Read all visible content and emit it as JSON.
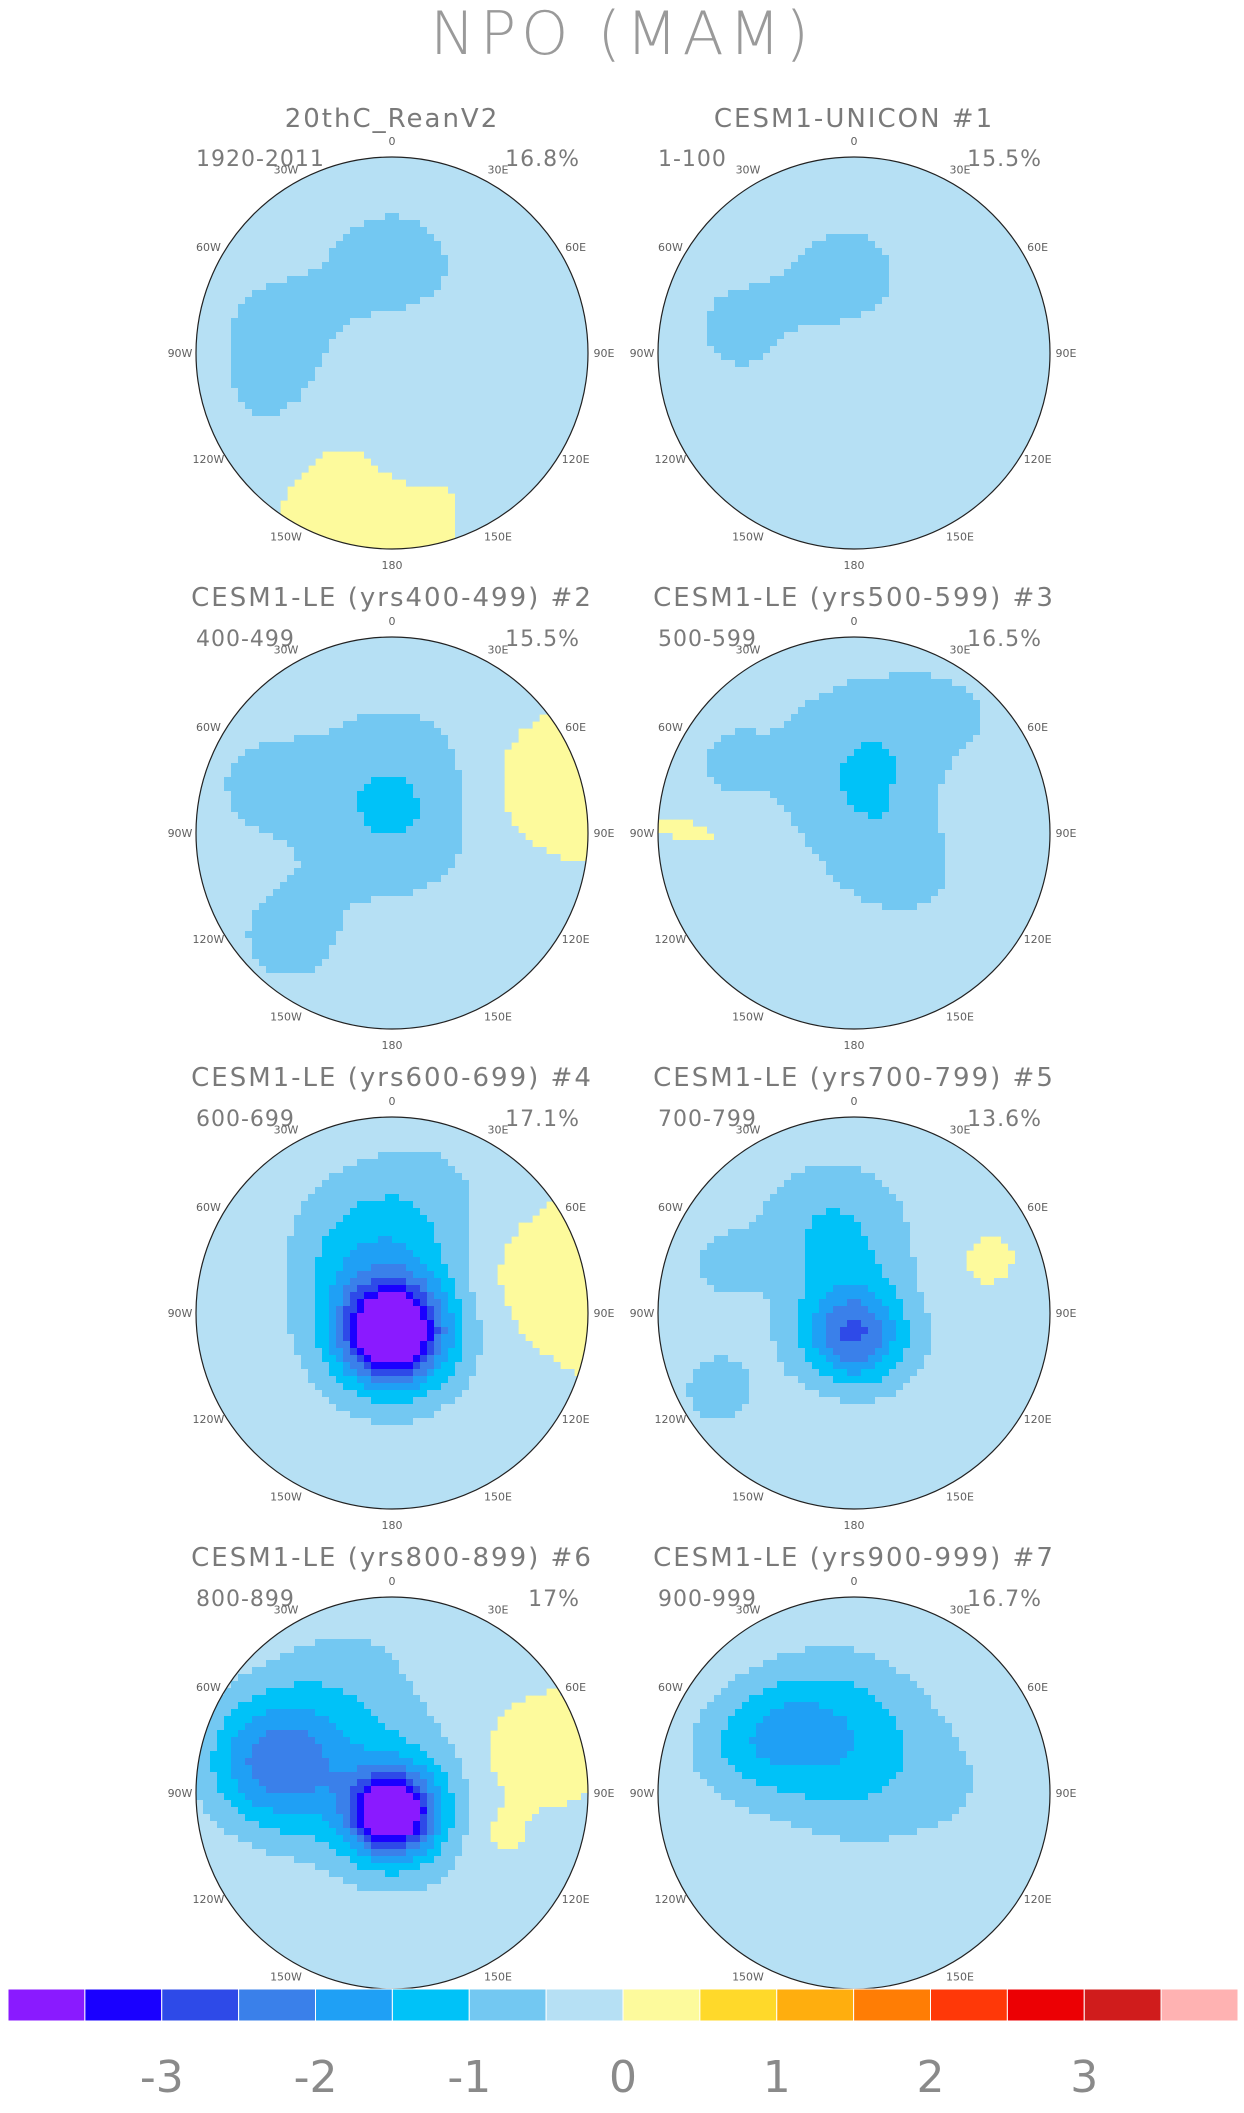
{
  "title": "NPO (MAM)",
  "colorbar": {
    "colors": [
      "#8a1aff",
      "#1a00ff",
      "#2e4ae8",
      "#3a80ea",
      "#1fa0f5",
      "#00c2f8",
      "#73c8f2",
      "#b6e0f4",
      "#fdfa9c",
      "#ffd92a",
      "#ffae0e",
      "#ff7d05",
      "#ff3808",
      "#ec0004",
      "#d01c1c",
      "#ffb2b2"
    ],
    "labels": [
      "-3",
      "-2",
      "-1",
      "0",
      "1",
      "2",
      "3"
    ]
  },
  "lon_labels": [
    "180",
    "150E",
    "120E",
    "90E",
    "60E",
    "30E",
    "0",
    "30W",
    "60W",
    "90W",
    "120W",
    "150W"
  ],
  "panels": [
    {
      "title": "20thC_ReanV2",
      "number": "",
      "period": "1920-2011",
      "variance": "16.8%",
      "blobs": [
        [
          105,
          -0.55,
          0.62,
          0.3,
          2.6
        ],
        [
          180,
          -0.7,
          0.48,
          0.25,
          -2.0
        ],
        [
          325,
          0.2,
          0.55,
          0.22,
          2.1
        ],
        [
          355,
          -0.4,
          0.45,
          0.18,
          1.6
        ],
        [
          300,
          -0.3,
          0.7,
          0.3,
          -1.2
        ],
        [
          240,
          -0.3,
          0.7,
          0.25,
          -0.9
        ],
        [
          60,
          -0.4,
          0.7,
          0.3,
          -0.7
        ],
        [
          20,
          0.4,
          0.7,
          0.25,
          -0.5
        ]
      ]
    },
    {
      "title": "CESM1-UNICON",
      "number": "#1",
      "period": "1-100",
      "variance": "15.5%",
      "blobs": [
        [
          105,
          -0.55,
          0.62,
          0.28,
          2.5
        ],
        [
          175,
          -0.7,
          0.42,
          0.22,
          -1.9
        ],
        [
          320,
          0.2,
          0.35,
          0.15,
          1.4
        ],
        [
          275,
          0.2,
          0.6,
          0.2,
          1.1
        ],
        [
          300,
          -0.25,
          0.6,
          0.4,
          -0.8
        ],
        [
          45,
          -0.2,
          0.7,
          0.35,
          -0.7
        ],
        [
          250,
          -0.2,
          0.8,
          0.3,
          -0.6
        ]
      ]
    },
    {
      "title": "CESM1-LE (yrs400-499)",
      "number": "#2",
      "period": "400-499",
      "variance": "15.5%",
      "blobs": [
        [
          110,
          -0.6,
          0.72,
          0.22,
          2.3
        ],
        [
          250,
          0.3,
          0.68,
          0.2,
          2.0
        ],
        [
          180,
          -0.6,
          0.3,
          0.35,
          -1.4
        ],
        [
          0,
          -0.6,
          0.0,
          0.33,
          -1.7
        ],
        [
          45,
          -0.8,
          0.75,
          0.2,
          -0.7
        ]
      ]
    },
    {
      "title": "CESM1-LE (yrs500-599)",
      "number": "#3",
      "period": "500-599",
      "variance": "16.5%",
      "blobs": [
        [
          300,
          -0.6,
          0.3,
          0.3,
          -3.0
        ],
        [
          170,
          -0.8,
          0.35,
          0.35,
          -2.0
        ],
        [
          225,
          -0.6,
          0.7,
          0.32,
          -0.8
        ],
        [
          250,
          0.5,
          0.6,
          0.22,
          1.7
        ],
        [
          80,
          0.2,
          0.65,
          0.2,
          1.5
        ],
        [
          120,
          -0.7,
          0.72,
          0.12,
          0.9
        ],
        [
          60,
          -0.5,
          0.8,
          0.2,
          -0.6
        ]
      ]
    },
    {
      "title": "CESM1-LE (yrs600-699)",
      "number": "#4",
      "period": "600-699",
      "variance": "17.1%",
      "blobs": [
        [
          0,
          -3.6,
          0.1,
          0.16,
          -3.2
        ],
        [
          0,
          -1.6,
          0.08,
          0.3,
          -1.5
        ],
        [
          160,
          -0.9,
          0.4,
          0.3,
          -1.4
        ],
        [
          255,
          0.3,
          0.62,
          0.22,
          2.0
        ],
        [
          200,
          -0.4,
          0.7,
          0.25,
          -0.7
        ]
      ]
    },
    {
      "title": "CESM1-LE (yrs700-799)",
      "number": "#5",
      "period": "700-799",
      "variance": "13.6%",
      "blobs": [
        [
          0,
          -2.3,
          0.12,
          0.18,
          -2.7
        ],
        [
          165,
          -1.1,
          0.4,
          0.3,
          -1.3
        ],
        [
          110,
          -0.5,
          0.75,
          0.15,
          1.5
        ],
        [
          250,
          0.2,
          0.7,
          0.1,
          0.9
        ],
        [
          60,
          -0.6,
          0.8,
          0.25,
          -0.7
        ],
        [
          300,
          -0.3,
          0.7,
          0.35,
          -0.6
        ]
      ]
    },
    {
      "title": "CESM1-LE (yrs800-899)",
      "number": "#6",
      "period": "800-899",
      "variance": "17%",
      "blobs": [
        [
          0,
          -3.6,
          0.1,
          0.14,
          -3.3
        ],
        [
          0,
          -1.3,
          0.08,
          0.3,
          -1.6
        ],
        [
          105,
          -2.2,
          0.62,
          0.25,
          -2.2
        ],
        [
          160,
          -0.6,
          0.62,
          0.3,
          -0.9
        ],
        [
          255,
          0.3,
          0.62,
          0.15,
          1.5
        ],
        [
          290,
          0.3,
          0.55,
          0.1,
          1.2
        ]
      ]
    },
    {
      "title": "CESM1-LE (yrs900-999)",
      "number": "#7",
      "period": "900-999",
      "variance": "16.7%",
      "blobs": [
        [
          110,
          -0.6,
          0.66,
          0.22,
          2.6
        ],
        [
          130,
          -0.6,
          0.5,
          0.2,
          1.8
        ],
        [
          160,
          -0.9,
          0.35,
          0.3,
          -2.4
        ],
        [
          200,
          -0.6,
          0.15,
          0.35,
          -1.2
        ],
        [
          270,
          -0.3,
          0.6,
          0.3,
          -0.7
        ]
      ]
    }
  ]
}
